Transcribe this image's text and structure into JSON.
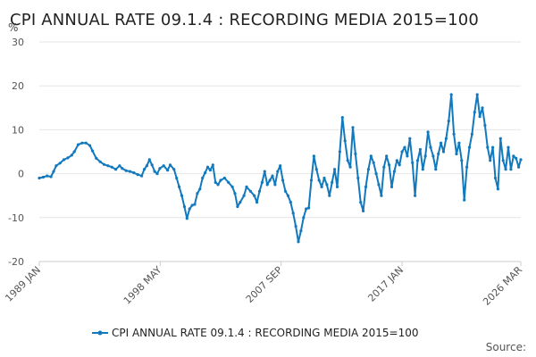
{
  "chart_data": {
    "type": "line",
    "title": "CPI ANNUAL RATE 09.1.4 : RECORDING MEDIA 2015=100",
    "ylabel": "%",
    "xlabel": "",
    "ylim": [
      -20,
      30
    ],
    "yticks": [
      30,
      20,
      10,
      0,
      -10,
      -20
    ],
    "xticks": [
      {
        "label": "1989 JAN",
        "x": 1989.0
      },
      {
        "label": "1998 MAY",
        "x": 1998.333
      },
      {
        "label": "2007 SEP",
        "x": 2007.667
      },
      {
        "label": "2017 JAN",
        "x": 2017.0
      },
      {
        "label": "2026 MAR",
        "x": 2026.167
      }
    ],
    "xlim": [
      1989.0,
      2026.167
    ],
    "grid": true,
    "legend_position": "bottom",
    "source_label": "Source:",
    "series": [
      {
        "name": "CPI ANNUAL RATE 09.1.4 : RECORDING MEDIA 2015=100",
        "color": "#1279bd",
        "points": [
          [
            1989.0,
            -1.0
          ],
          [
            1989.3,
            -0.8
          ],
          [
            1989.6,
            -0.5
          ],
          [
            1989.9,
            -0.7
          ],
          [
            1990.1,
            0.5
          ],
          [
            1990.3,
            1.8
          ],
          [
            1990.6,
            2.4
          ],
          [
            1990.9,
            3.2
          ],
          [
            1991.2,
            3.6
          ],
          [
            1991.5,
            4.2
          ],
          [
            1991.7,
            5.0
          ],
          [
            1992.0,
            6.6
          ],
          [
            1992.3,
            7.0
          ],
          [
            1992.6,
            7.0
          ],
          [
            1992.9,
            6.4
          ],
          [
            1993.1,
            5.2
          ],
          [
            1993.4,
            3.5
          ],
          [
            1993.7,
            2.7
          ],
          [
            1994.0,
            2.1
          ],
          [
            1994.3,
            1.8
          ],
          [
            1994.6,
            1.5
          ],
          [
            1994.9,
            1.0
          ],
          [
            1995.2,
            1.8
          ],
          [
            1995.4,
            1.2
          ],
          [
            1995.7,
            0.7
          ],
          [
            1996.0,
            0.5
          ],
          [
            1996.3,
            0.2
          ],
          [
            1996.6,
            -0.2
          ],
          [
            1996.9,
            -0.5
          ],
          [
            1997.1,
            1.0
          ],
          [
            1997.3,
            1.8
          ],
          [
            1997.5,
            3.2
          ],
          [
            1997.7,
            2.0
          ],
          [
            1997.9,
            0.5
          ],
          [
            1998.1,
            0.0
          ],
          [
            1998.3,
            1.2
          ],
          [
            1998.6,
            1.8
          ],
          [
            1998.9,
            0.8
          ],
          [
            1999.1,
            2.0
          ],
          [
            1999.4,
            1.0
          ],
          [
            1999.6,
            -1.0
          ],
          [
            1999.8,
            -3.0
          ],
          [
            2000.0,
            -5.0
          ],
          [
            2000.2,
            -7.5
          ],
          [
            2000.4,
            -10.2
          ],
          [
            2000.6,
            -8.0
          ],
          [
            2000.8,
            -7.2
          ],
          [
            2001.0,
            -7.0
          ],
          [
            2001.2,
            -4.5
          ],
          [
            2001.4,
            -3.5
          ],
          [
            2001.6,
            -1.0
          ],
          [
            2001.8,
            0.2
          ],
          [
            2002.0,
            1.5
          ],
          [
            2002.2,
            0.8
          ],
          [
            2002.4,
            2.0
          ],
          [
            2002.6,
            -2.0
          ],
          [
            2002.8,
            -2.5
          ],
          [
            2003.0,
            -1.5
          ],
          [
            2003.3,
            -1.0
          ],
          [
            2003.6,
            -2.0
          ],
          [
            2003.9,
            -3.0
          ],
          [
            2004.1,
            -4.5
          ],
          [
            2004.3,
            -7.5
          ],
          [
            2004.5,
            -6.5
          ],
          [
            2004.8,
            -5.0
          ],
          [
            2005.0,
            -3.0
          ],
          [
            2005.3,
            -4.0
          ],
          [
            2005.6,
            -5.0
          ],
          [
            2005.8,
            -6.5
          ],
          [
            2006.0,
            -4.0
          ],
          [
            2006.2,
            -2.0
          ],
          [
            2006.4,
            0.5
          ],
          [
            2006.6,
            -2.5
          ],
          [
            2006.8,
            -1.5
          ],
          [
            2007.0,
            -0.5
          ],
          [
            2007.2,
            -2.5
          ],
          [
            2007.4,
            0.5
          ],
          [
            2007.6,
            1.8
          ],
          [
            2007.8,
            -1.5
          ],
          [
            2008.0,
            -4.0
          ],
          [
            2008.2,
            -5.0
          ],
          [
            2008.4,
            -6.5
          ],
          [
            2008.6,
            -9.0
          ],
          [
            2008.8,
            -12.0
          ],
          [
            2009.0,
            -15.5
          ],
          [
            2009.2,
            -13.0
          ],
          [
            2009.4,
            -10.0
          ],
          [
            2009.6,
            -8.0
          ],
          [
            2009.8,
            -7.8
          ],
          [
            2010.0,
            -1.5
          ],
          [
            2010.2,
            4.0
          ],
          [
            2010.4,
            1.0
          ],
          [
            2010.6,
            -1.5
          ],
          [
            2010.8,
            -3.0
          ],
          [
            2011.0,
            -1.0
          ],
          [
            2011.2,
            -2.5
          ],
          [
            2011.4,
            -5.0
          ],
          [
            2011.6,
            -2.0
          ],
          [
            2011.8,
            1.0
          ],
          [
            2012.0,
            -3.0
          ],
          [
            2012.2,
            5.0
          ],
          [
            2012.4,
            12.8
          ],
          [
            2012.6,
            7.5
          ],
          [
            2012.8,
            3.0
          ],
          [
            2013.0,
            1.5
          ],
          [
            2013.2,
            10.5
          ],
          [
            2013.4,
            4.5
          ],
          [
            2013.6,
            -1.0
          ],
          [
            2013.8,
            -6.5
          ],
          [
            2014.0,
            -8.5
          ],
          [
            2014.2,
            -3.0
          ],
          [
            2014.4,
            1.0
          ],
          [
            2014.6,
            4.0
          ],
          [
            2014.8,
            2.5
          ],
          [
            2015.0,
            0.0
          ],
          [
            2015.2,
            -2.5
          ],
          [
            2015.4,
            -5.0
          ],
          [
            2015.6,
            1.5
          ],
          [
            2015.8,
            4.0
          ],
          [
            2016.0,
            2.0
          ],
          [
            2016.2,
            -3.0
          ],
          [
            2016.4,
            0.5
          ],
          [
            2016.6,
            3.0
          ],
          [
            2016.8,
            2.0
          ],
          [
            2017.0,
            5.0
          ],
          [
            2017.2,
            6.0
          ],
          [
            2017.4,
            4.0
          ],
          [
            2017.6,
            8.0
          ],
          [
            2017.8,
            2.5
          ],
          [
            2018.0,
            -5.0
          ],
          [
            2018.2,
            3.0
          ],
          [
            2018.4,
            5.5
          ],
          [
            2018.6,
            1.0
          ],
          [
            2018.8,
            4.0
          ],
          [
            2019.0,
            9.5
          ],
          [
            2019.2,
            6.0
          ],
          [
            2019.4,
            4.0
          ],
          [
            2019.6,
            1.0
          ],
          [
            2019.8,
            4.5
          ],
          [
            2020.0,
            7.0
          ],
          [
            2020.2,
            5.0
          ],
          [
            2020.4,
            8.0
          ],
          [
            2020.6,
            12.0
          ],
          [
            2020.8,
            18.0
          ],
          [
            2021.0,
            9.0
          ],
          [
            2021.2,
            4.5
          ],
          [
            2021.4,
            7.0
          ],
          [
            2021.6,
            3.0
          ],
          [
            2021.8,
            -6.0
          ],
          [
            2022.0,
            1.5
          ],
          [
            2022.2,
            6.0
          ],
          [
            2022.4,
            9.0
          ],
          [
            2022.6,
            14.0
          ],
          [
            2022.8,
            18.0
          ],
          [
            2023.0,
            13.0
          ],
          [
            2023.2,
            15.0
          ],
          [
            2023.4,
            11.0
          ],
          [
            2023.6,
            6.0
          ],
          [
            2023.8,
            3.0
          ],
          [
            2024.0,
            6.0
          ],
          [
            2024.2,
            -1.0
          ],
          [
            2024.4,
            -3.5
          ],
          [
            2024.6,
            8.0
          ],
          [
            2024.8,
            3.0
          ],
          [
            2025.0,
            1.0
          ],
          [
            2025.2,
            6.0
          ],
          [
            2025.4,
            1.0
          ],
          [
            2025.6,
            4.0
          ],
          [
            2025.8,
            3.5
          ],
          [
            2026.0,
            1.5
          ],
          [
            2026.167,
            3.2
          ]
        ]
      }
    ]
  }
}
